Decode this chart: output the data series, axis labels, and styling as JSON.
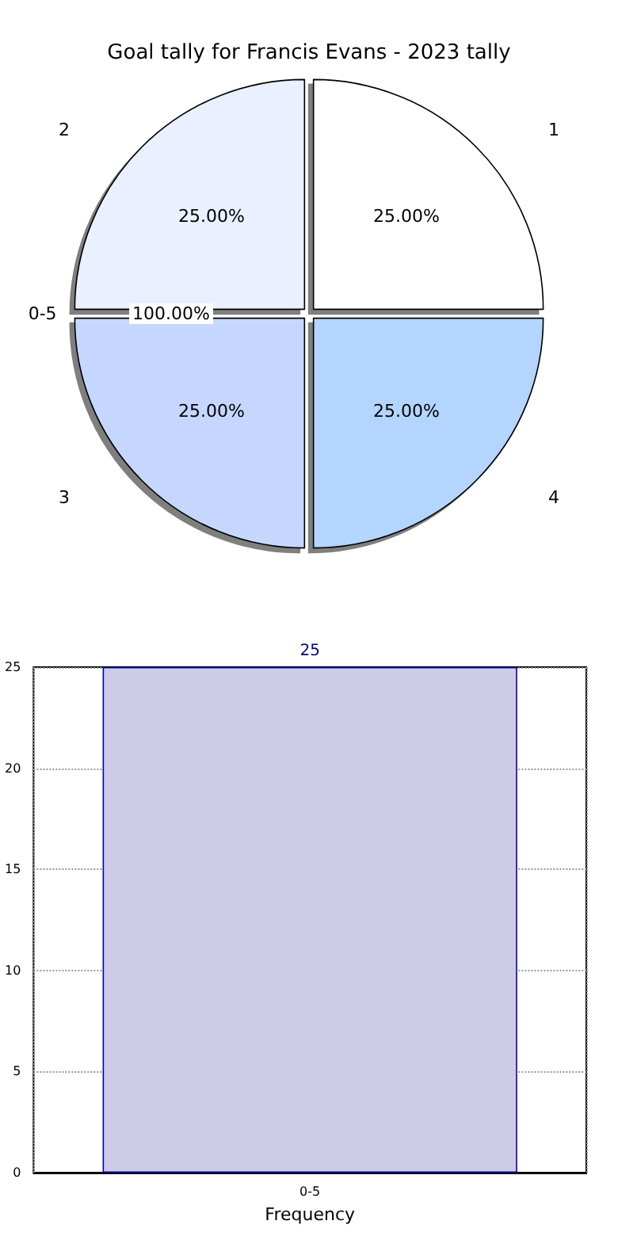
{
  "chart_data": [
    {
      "type": "pie",
      "title": "Goal tally for Francis Evans - 2023 tally",
      "categories": [
        "1",
        "2",
        "3",
        "4"
      ],
      "values": [
        25,
        25,
        25,
        25
      ],
      "value_labels": [
        "25.00%",
        "25.00%",
        "25.00%",
        "25.00%"
      ],
      "colors": [
        "#ffffff",
        "#eaf0ff",
        "#c6d7ff",
        "#b3d5ff"
      ],
      "annotations": [
        "0-5",
        "100.00%"
      ]
    },
    {
      "type": "bar",
      "categories": [
        "0-5"
      ],
      "values": [
        25
      ],
      "color": "#cccce6",
      "xlabel": "Frequency",
      "ylim": [
        0,
        25
      ],
      "yticks": [
        0,
        5,
        10,
        15,
        20,
        25
      ],
      "grid": true,
      "data_labels": true
    }
  ]
}
